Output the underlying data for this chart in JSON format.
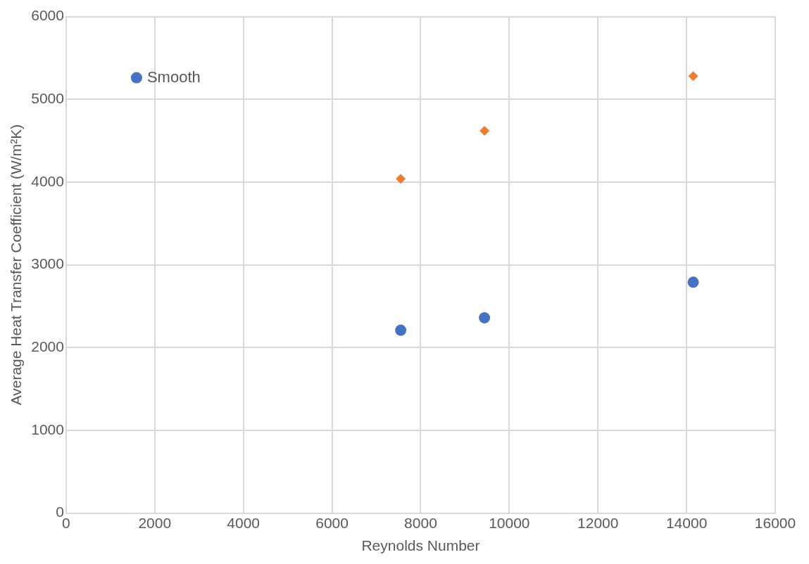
{
  "chart_data": {
    "type": "scatter",
    "xlabel": "Reynolds Number",
    "ylabel": "Average Heat Transfer Coefficient (W/m²K)",
    "xlim": [
      0,
      16000
    ],
    "xticks": [
      0,
      2000,
      4000,
      6000,
      8000,
      10000,
      12000,
      14000,
      16000
    ],
    "ylim": [
      0,
      6000
    ],
    "yticks": [
      0,
      1000,
      2000,
      3000,
      4000,
      5000,
      6000
    ],
    "grid": true,
    "legend": "top left",
    "x": [
      7550,
      9440,
      14150
    ],
    "series": [
      {
        "color": "#ed7d31",
        "marker": "diamond",
        "values": [
          4040,
          4620,
          5280
        ]
      },
      {
        "name": "Smooth",
        "color": "#4472c4",
        "marker": "circle",
        "values": [
          2210,
          2360,
          2790
        ]
      }
    ]
  }
}
